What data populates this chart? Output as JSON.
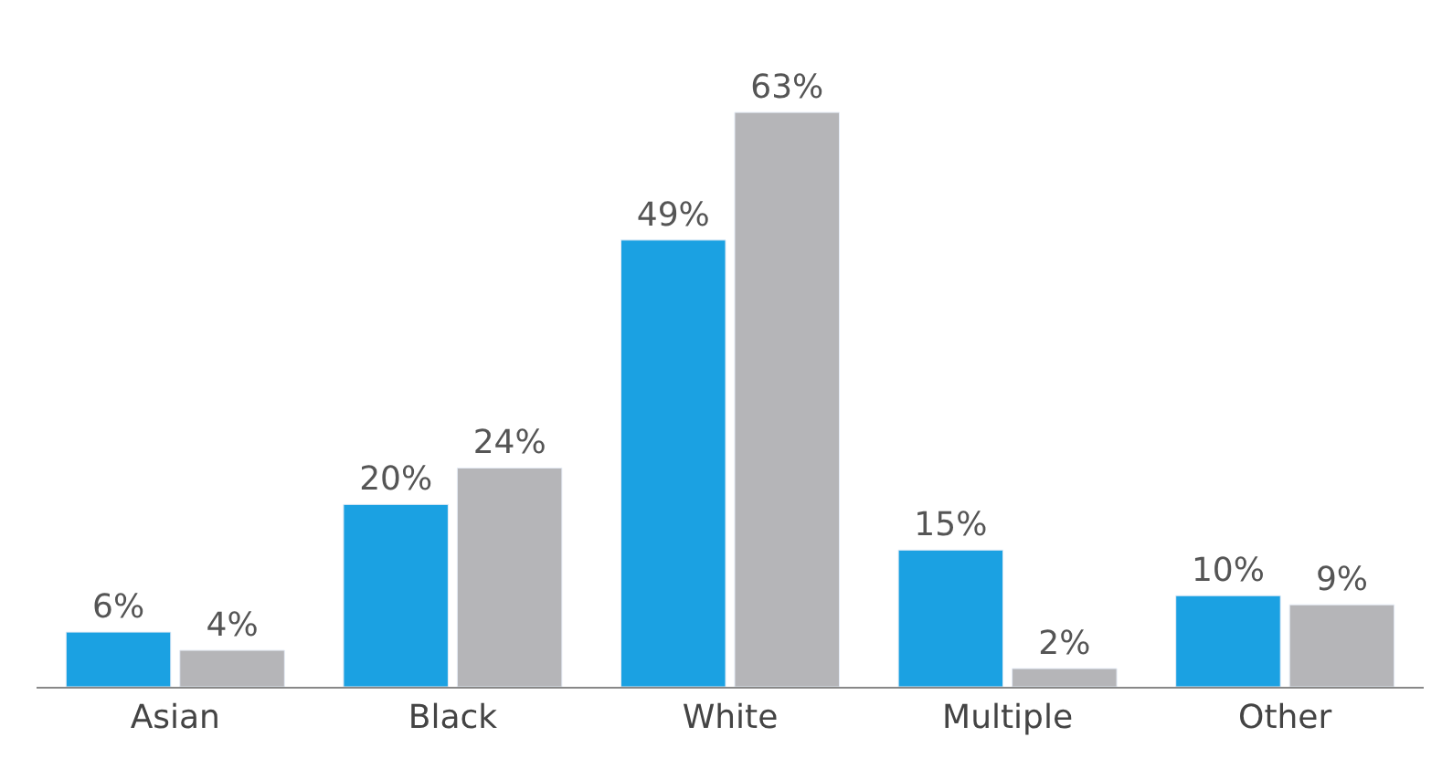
{
  "chart_data": {
    "type": "bar",
    "categories": [
      "Asian",
      "Black",
      "White",
      "Multiple",
      "Other"
    ],
    "series": [
      {
        "color": "#1ba1e2",
        "values": [
          6,
          20,
          49,
          15,
          10
        ],
        "value_labels": [
          "6%",
          "20%",
          "49%",
          "15%",
          "10%"
        ]
      },
      {
        "color": "#b5b5b8",
        "values": [
          4,
          24,
          63,
          2,
          9
        ],
        "value_labels": [
          "4%",
          "24%",
          "63%",
          "2%",
          "9%"
        ]
      }
    ],
    "data_labels": false
  }
}
